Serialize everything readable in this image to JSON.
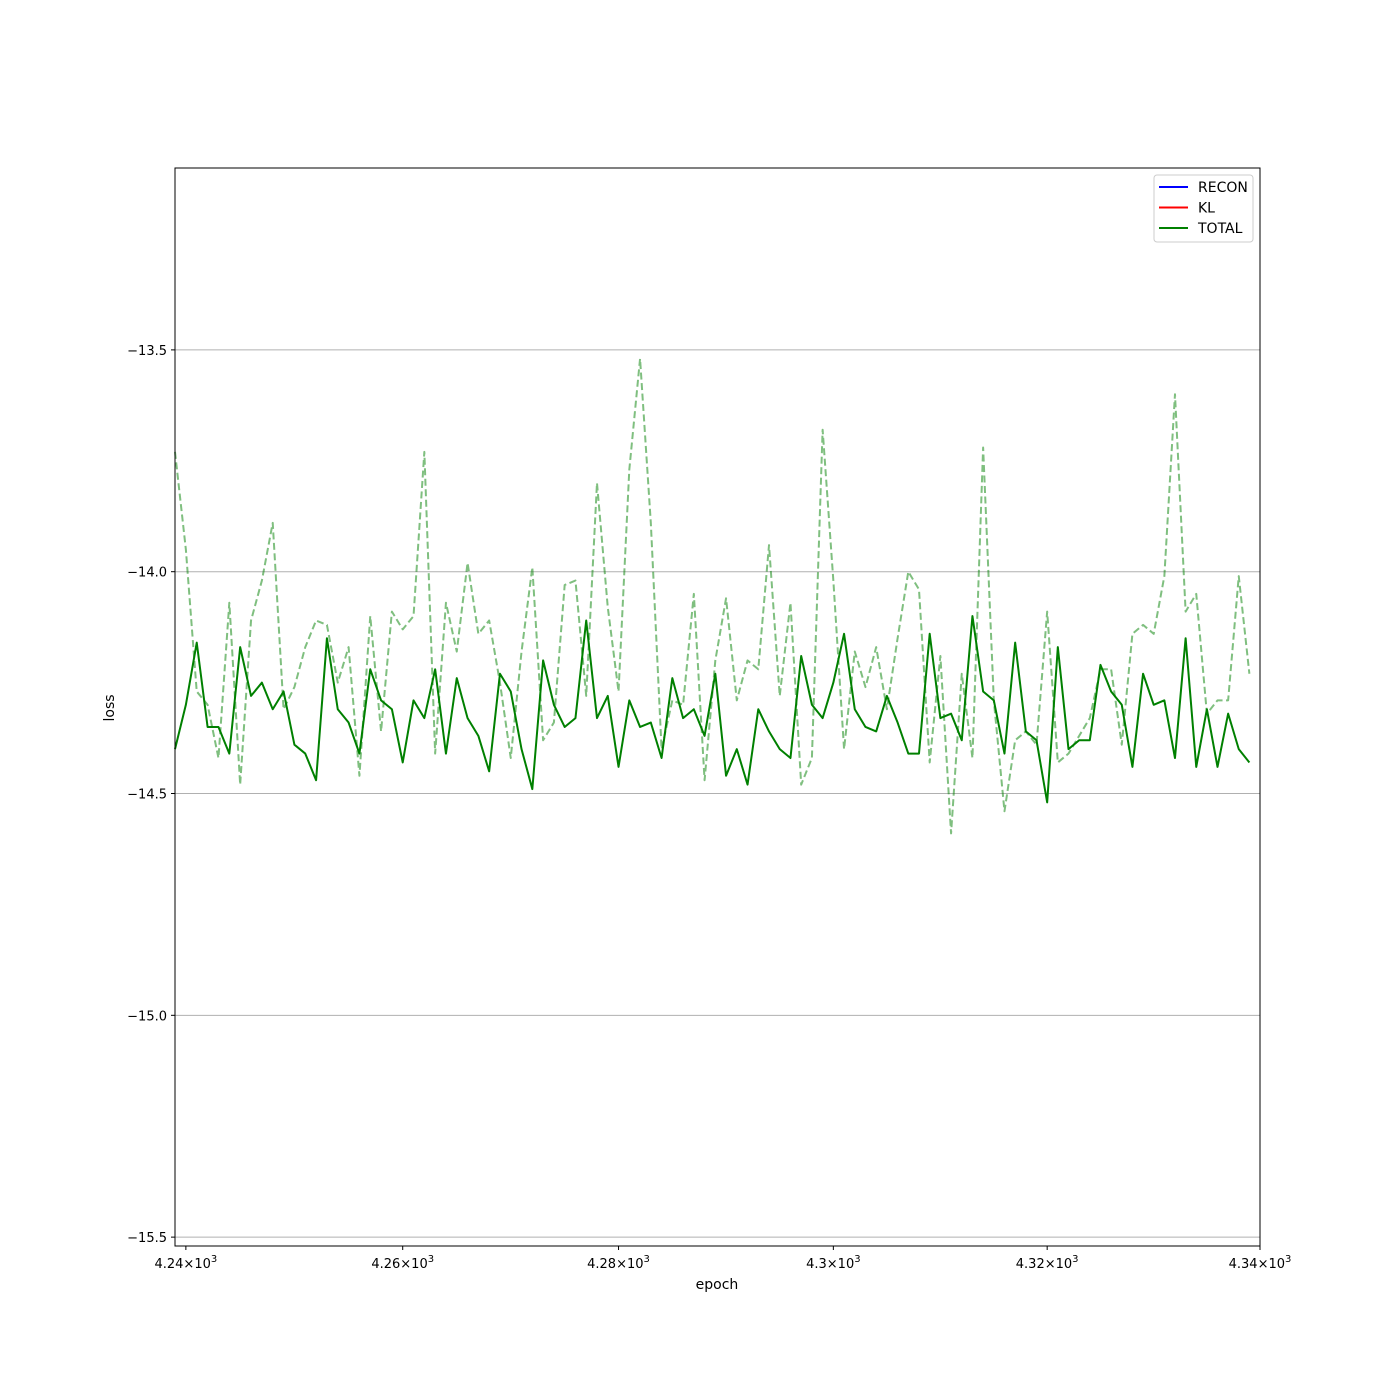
{
  "chart_data": {
    "type": "line",
    "title": "",
    "xlabel": "epoch",
    "ylabel": "loss",
    "xscale": "log",
    "xlim": [
      4239,
      4340
    ],
    "ylim": [
      -15.52,
      -13.09
    ],
    "grid": "horizontal",
    "legend_position": "top-right",
    "x_ticks": [
      {
        "value": 4240,
        "mantissa": "4.24",
        "exp": "3"
      },
      {
        "value": 4260,
        "mantissa": "4.26",
        "exp": "3"
      },
      {
        "value": 4280,
        "mantissa": "4.28",
        "exp": "3"
      },
      {
        "value": 4300,
        "mantissa": "4.3",
        "exp": "3"
      },
      {
        "value": 4320,
        "mantissa": "4.32",
        "exp": "3"
      },
      {
        "value": 4340,
        "mantissa": "4.34",
        "exp": "3"
      }
    ],
    "times_sign": "×",
    "base": "10",
    "y_ticks": [
      {
        "value": -13.5,
        "label": "−13.5"
      },
      {
        "value": -14.0,
        "label": "−14.0"
      },
      {
        "value": -14.5,
        "label": "−14.5"
      },
      {
        "value": -15.0,
        "label": "−15.0"
      },
      {
        "value": -15.5,
        "label": "−15.5"
      }
    ],
    "legend": [
      {
        "name": "RECON",
        "color": "#0000ff"
      },
      {
        "name": "KL",
        "color": "#ff0000"
      },
      {
        "name": "TOTAL",
        "color": "#008000"
      }
    ],
    "x_start": 4239,
    "series": [
      {
        "name": "TOTAL",
        "color": "#008000",
        "style": "solid",
        "values": [
          -14.4,
          -14.3,
          -14.16,
          -14.35,
          -14.35,
          -14.41,
          -14.17,
          -14.28,
          -14.25,
          -14.31,
          -14.27,
          -14.39,
          -14.41,
          -14.47,
          -14.15,
          -14.31,
          -14.34,
          -14.41,
          -14.22,
          -14.29,
          -14.31,
          -14.43,
          -14.29,
          -14.33,
          -14.22,
          -14.41,
          -14.24,
          -14.33,
          -14.37,
          -14.45,
          -14.23,
          -14.27,
          -14.4,
          -14.49,
          -14.2,
          -14.3,
          -14.35,
          -14.33,
          -14.11,
          -14.33,
          -14.28,
          -14.44,
          -14.29,
          -14.35,
          -14.34,
          -14.42,
          -14.24,
          -14.33,
          -14.31,
          -14.37,
          -14.23,
          -14.46,
          -14.4,
          -14.48,
          -14.31,
          -14.36,
          -14.4,
          -14.42,
          -14.19,
          -14.3,
          -14.33,
          -14.25,
          -14.14,
          -14.31,
          -14.35,
          -14.36,
          -14.28,
          -14.34,
          -14.41,
          -14.41,
          -14.14,
          -14.33,
          -14.32,
          -14.38,
          -14.1,
          -14.27,
          -14.29,
          -14.41,
          -14.16,
          -14.36,
          -14.38,
          -14.52,
          -14.17,
          -14.4,
          -14.38,
          -14.38,
          -14.21,
          -14.27,
          -14.3,
          -14.44,
          -14.23,
          -14.3,
          -14.29,
          -14.42,
          -14.15,
          -14.44,
          -14.31,
          -14.44,
          -14.32,
          -14.4,
          -14.43
        ]
      },
      {
        "name": "",
        "color": "#008000",
        "style": "dashed",
        "opacity": 0.5,
        "values": [
          -13.73,
          -13.95,
          -14.27,
          -14.3,
          -14.42,
          -14.07,
          -14.48,
          -14.11,
          -14.02,
          -13.89,
          -14.31,
          -14.26,
          -14.17,
          -14.11,
          -14.12,
          -14.25,
          -14.17,
          -14.46,
          -14.1,
          -14.36,
          -14.09,
          -14.13,
          -14.1,
          -13.73,
          -14.41,
          -14.07,
          -14.18,
          -13.98,
          -14.14,
          -14.11,
          -14.25,
          -14.42,
          -14.18,
          -13.99,
          -14.38,
          -14.34,
          -14.03,
          -14.02,
          -14.28,
          -13.8,
          -14.08,
          -14.27,
          -13.77,
          -13.52,
          -13.89,
          -14.4,
          -14.29,
          -14.3,
          -14.05,
          -14.47,
          -14.2,
          -14.06,
          -14.29,
          -14.2,
          -14.22,
          -13.94,
          -14.28,
          -14.07,
          -14.48,
          -14.42,
          -13.68,
          -14.02,
          -14.4,
          -14.18,
          -14.26,
          -14.17,
          -14.31,
          -14.15,
          -14.0,
          -14.04,
          -14.43,
          -14.19,
          -14.59,
          -14.23,
          -14.42,
          -13.72,
          -14.29,
          -14.54,
          -14.38,
          -14.36,
          -14.39,
          -14.09,
          -14.43,
          -14.41,
          -14.37,
          -14.33,
          -14.22,
          -14.22,
          -14.39,
          -14.14,
          -14.12,
          -14.14,
          -14.01,
          -13.6,
          -14.09,
          -14.05,
          -14.32,
          -14.29,
          -14.29,
          -14.01,
          -14.23
        ]
      }
    ]
  }
}
